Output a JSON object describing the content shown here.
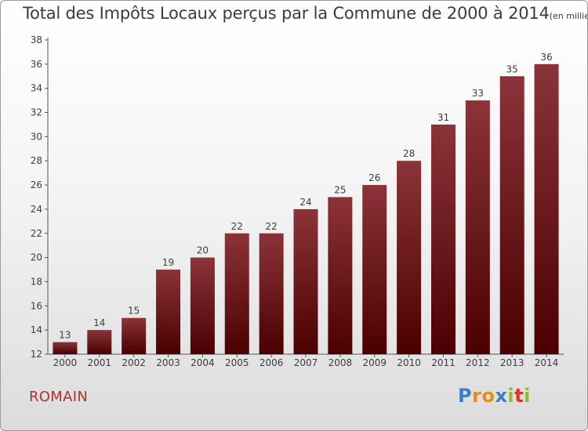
{
  "header": {
    "title": "Total des Impôts Locaux perçus par la Commune de 2000 à 2014",
    "unit": "(en milliers d'€)"
  },
  "footer": {
    "commune": "ROMAIN",
    "logo_letters": [
      "P",
      "r",
      "o",
      "x",
      "i",
      "t",
      "i"
    ],
    "logo_colors": [
      "#3d7fc4",
      "#e58a1a",
      "#e58a1a",
      "#3d7fc4",
      "#8cbf2a",
      "#e2312c",
      "#8cbf2a"
    ]
  },
  "colors": {
    "bar_light": "#8b3339",
    "bar_dark": "#4a0000",
    "text": "#3c3c3c",
    "commune": "#b5302f"
  },
  "chart_data": {
    "type": "bar",
    "title": "Total des Impôts Locaux perçus par la Commune de 2000 à 2014",
    "ylabel": "(en milliers d'€)",
    "categories": [
      "2000",
      "2001",
      "2002",
      "2003",
      "2004",
      "2005",
      "2006",
      "2007",
      "2008",
      "2009",
      "2010",
      "2011",
      "2012",
      "2013",
      "2014"
    ],
    "values": [
      13,
      14,
      15,
      19,
      20,
      22,
      22,
      24,
      25,
      26,
      28,
      31,
      33,
      35,
      36
    ],
    "ylim": [
      12,
      38
    ],
    "yticks": [
      12,
      14,
      16,
      18,
      20,
      22,
      24,
      26,
      28,
      30,
      32,
      34,
      36,
      38
    ],
    "grid": false
  }
}
